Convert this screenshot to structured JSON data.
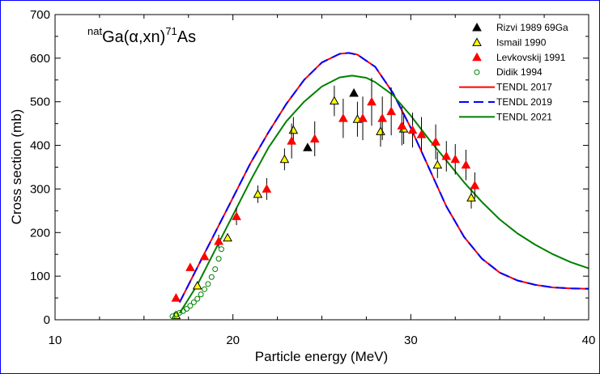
{
  "chart_data": {
    "type": "scatter",
    "title": "",
    "annotation": {
      "prefix_sup": "nat",
      "main": "Ga(α,xn)",
      "mid_sup": "71",
      "suffix": "As"
    },
    "xlabel": "Particle energy (MeV)",
    "ylabel": "Cross section (mb)",
    "xlim": [
      10,
      40
    ],
    "ylim": [
      0,
      700
    ],
    "xticks": [
      10,
      20,
      30,
      40
    ],
    "yticks": [
      0,
      100,
      200,
      300,
      400,
      500,
      600,
      700
    ],
    "grid": false,
    "legend_position": "top-right",
    "series": [
      {
        "name": "Rizvi 1989 69Ga",
        "kind": "points",
        "marker": "triangle",
        "fill": "#000000",
        "stroke": "#000000",
        "points": [
          [
            24.2,
            395,
            0
          ],
          [
            26.8,
            520,
            0
          ]
        ]
      },
      {
        "name": "Ismail 1990",
        "kind": "points",
        "marker": "triangle",
        "fill": "#ffff00",
        "stroke": "#000000",
        "points": [
          [
            16.8,
            10,
            0
          ],
          [
            18.0,
            78,
            0
          ],
          [
            19.7,
            188,
            0
          ],
          [
            21.4,
            288,
            20
          ],
          [
            22.9,
            368,
            25
          ],
          [
            23.4,
            435,
            30
          ],
          [
            25.7,
            502,
            35
          ],
          [
            27.0,
            460,
            40
          ],
          [
            28.3,
            432,
            35
          ],
          [
            29.6,
            438,
            35
          ],
          [
            31.5,
            355,
            30
          ],
          [
            33.4,
            280,
            25
          ]
        ]
      },
      {
        "name": "Levkovskij 1991",
        "kind": "points",
        "marker": "triangle",
        "fill": "#ff0000",
        "stroke": "#ff0000",
        "points": [
          [
            16.8,
            50,
            0
          ],
          [
            17.6,
            120,
            0
          ],
          [
            18.4,
            145,
            0
          ],
          [
            19.2,
            180,
            15
          ],
          [
            20.2,
            237,
            20
          ],
          [
            21.9,
            300,
            25
          ],
          [
            23.3,
            410,
            40
          ],
          [
            24.6,
            415,
            40
          ],
          [
            26.2,
            462,
            45
          ],
          [
            27.3,
            462,
            50
          ],
          [
            27.8,
            500,
            55
          ],
          [
            28.4,
            462,
            50
          ],
          [
            28.9,
            478,
            55
          ],
          [
            29.5,
            445,
            45
          ],
          [
            30.1,
            435,
            40
          ],
          [
            30.6,
            425,
            40
          ],
          [
            31.4,
            408,
            40
          ],
          [
            32.0,
            375,
            35
          ],
          [
            32.5,
            368,
            35
          ],
          [
            33.1,
            355,
            35
          ],
          [
            33.6,
            308,
            30
          ]
        ]
      },
      {
        "name": "Didik 1994",
        "kind": "points",
        "marker": "circle",
        "fill": "none",
        "stroke": "#008000",
        "points": [
          [
            16.6,
            8,
            0
          ],
          [
            16.8,
            12,
            0
          ],
          [
            17.0,
            16,
            0
          ],
          [
            17.2,
            20,
            0
          ],
          [
            17.4,
            25,
            0
          ],
          [
            17.6,
            32,
            0
          ],
          [
            17.8,
            40,
            0
          ],
          [
            18.0,
            48,
            0
          ],
          [
            18.2,
            58,
            0
          ],
          [
            18.4,
            70,
            0
          ],
          [
            18.6,
            82,
            0
          ],
          [
            18.8,
            98,
            0
          ],
          [
            19.0,
            116,
            0
          ],
          [
            19.2,
            140,
            0
          ],
          [
            19.35,
            162,
            0
          ]
        ]
      },
      {
        "name": "TENDL 2017",
        "kind": "line",
        "color": "#ff0000",
        "dash": "",
        "width": 2,
        "points": [
          [
            17.0,
            40
          ],
          [
            18.0,
            120
          ],
          [
            19.0,
            200
          ],
          [
            20.0,
            280
          ],
          [
            21.0,
            360
          ],
          [
            22.0,
            430
          ],
          [
            23.0,
            495
          ],
          [
            24.0,
            550
          ],
          [
            25.0,
            590
          ],
          [
            26.0,
            610
          ],
          [
            26.5,
            612
          ],
          [
            27.0,
            608
          ],
          [
            28.0,
            580
          ],
          [
            29.0,
            520
          ],
          [
            30.0,
            440
          ],
          [
            31.0,
            350
          ],
          [
            32.0,
            260
          ],
          [
            33.0,
            190
          ],
          [
            34.0,
            140
          ],
          [
            35.0,
            108
          ],
          [
            36.0,
            90
          ],
          [
            37.0,
            80
          ],
          [
            38.0,
            74
          ],
          [
            39.0,
            72
          ],
          [
            40.0,
            71
          ]
        ]
      },
      {
        "name": "TENDL 2019",
        "kind": "line",
        "color": "#0000ff",
        "dash": "12 6",
        "width": 2,
        "points": [
          [
            17.0,
            40
          ],
          [
            18.0,
            120
          ],
          [
            19.0,
            200
          ],
          [
            20.0,
            280
          ],
          [
            21.0,
            360
          ],
          [
            22.0,
            430
          ],
          [
            23.0,
            495
          ],
          [
            24.0,
            550
          ],
          [
            25.0,
            590
          ],
          [
            26.0,
            610
          ],
          [
            26.5,
            612
          ],
          [
            27.0,
            608
          ],
          [
            28.0,
            580
          ],
          [
            29.0,
            520
          ],
          [
            30.0,
            440
          ],
          [
            31.0,
            350
          ],
          [
            32.0,
            260
          ],
          [
            33.0,
            190
          ],
          [
            34.0,
            140
          ],
          [
            35.0,
            108
          ],
          [
            36.0,
            90
          ],
          [
            37.0,
            80
          ],
          [
            38.0,
            74
          ],
          [
            39.0,
            72
          ],
          [
            40.0,
            71
          ]
        ]
      },
      {
        "name": "TENDL 2021",
        "kind": "line",
        "color": "#008000",
        "dash": "",
        "width": 2,
        "points": [
          [
            17.0,
            15
          ],
          [
            18.0,
            80
          ],
          [
            19.0,
            160
          ],
          [
            20.0,
            240
          ],
          [
            21.0,
            320
          ],
          [
            22.0,
            395
          ],
          [
            23.0,
            455
          ],
          [
            24.0,
            500
          ],
          [
            25.0,
            535
          ],
          [
            26.0,
            556
          ],
          [
            26.7,
            560
          ],
          [
            27.5,
            555
          ],
          [
            28.0,
            545
          ],
          [
            29.0,
            515
          ],
          [
            30.0,
            468
          ],
          [
            31.0,
            415
          ],
          [
            32.0,
            365
          ],
          [
            33.0,
            315
          ],
          [
            34.0,
            270
          ],
          [
            35.0,
            230
          ],
          [
            36.0,
            198
          ],
          [
            37.0,
            172
          ],
          [
            38.0,
            150
          ],
          [
            39.0,
            132
          ],
          [
            40.0,
            118
          ]
        ]
      }
    ]
  }
}
